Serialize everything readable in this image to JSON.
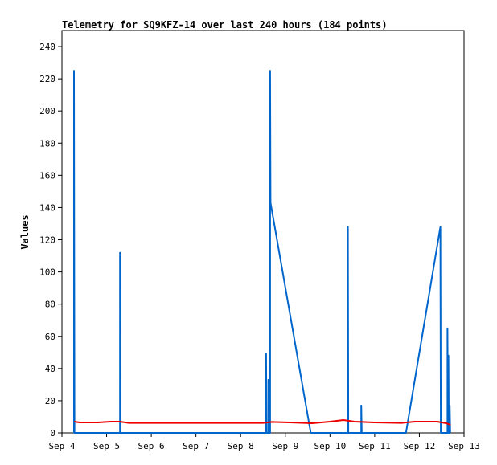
{
  "chart_data": {
    "type": "line",
    "title": "Telemetry for SQ9KFZ-14 over last 240 hours (184 points)",
    "ylabel": "Values",
    "xlabel": "",
    "ylim": [
      0,
      250
    ],
    "y_ticks": [
      0,
      20,
      40,
      60,
      80,
      100,
      120,
      140,
      160,
      180,
      200,
      220,
      240
    ],
    "xlim": [
      4.0,
      13.0
    ],
    "x_ticks": [
      {
        "label": "Sep 4",
        "x": 4
      },
      {
        "label": "Sep 5",
        "x": 5
      },
      {
        "label": "Sep 6",
        "x": 6
      },
      {
        "label": "Sep 7",
        "x": 7
      },
      {
        "label": "Sep 8",
        "x": 8
      },
      {
        "label": "Sep 9",
        "x": 9
      },
      {
        "label": "Sep 10",
        "x": 10
      },
      {
        "label": "Sep 11",
        "x": 11
      },
      {
        "label": "Sep 12",
        "x": 12
      },
      {
        "label": "Sep 13",
        "x": 13
      }
    ],
    "grid": false,
    "series": [
      {
        "color": "#0066cc",
        "points": [
          [
            4.27,
            0
          ],
          [
            4.27,
            225
          ],
          [
            4.28,
            0
          ],
          [
            5.3,
            0
          ],
          [
            5.3,
            112
          ],
          [
            5.31,
            0
          ],
          [
            8.57,
            0
          ],
          [
            8.57,
            49
          ],
          [
            8.58,
            0
          ],
          [
            8.62,
            0
          ],
          [
            8.62,
            33
          ],
          [
            8.63,
            0
          ],
          [
            8.66,
            0
          ],
          [
            8.66,
            225
          ],
          [
            8.67,
            143
          ],
          [
            9.57,
            0
          ],
          [
            10.4,
            0
          ],
          [
            10.4,
            128
          ],
          [
            10.41,
            0
          ],
          [
            10.7,
            0
          ],
          [
            10.7,
            17
          ],
          [
            10.71,
            0
          ],
          [
            11.7,
            0
          ],
          [
            12.47,
            128
          ],
          [
            12.48,
            0
          ],
          [
            12.63,
            0
          ],
          [
            12.63,
            65
          ],
          [
            12.64,
            0
          ],
          [
            12.65,
            0
          ],
          [
            12.65,
            48
          ],
          [
            12.66,
            0
          ],
          [
            12.68,
            0
          ],
          [
            12.68,
            17
          ],
          [
            12.69,
            0
          ]
        ]
      },
      {
        "color": "#ee0000",
        "points": [
          [
            4.27,
            7.0
          ],
          [
            4.4,
            6.5
          ],
          [
            4.8,
            6.5
          ],
          [
            5.1,
            7.0
          ],
          [
            5.3,
            7.0
          ],
          [
            5.5,
            6.2
          ],
          [
            6.5,
            6.2
          ],
          [
            7.5,
            6.2
          ],
          [
            8.5,
            6.2
          ],
          [
            8.7,
            6.8
          ],
          [
            9.1,
            6.5
          ],
          [
            9.6,
            6.0
          ],
          [
            10.0,
            7.0
          ],
          [
            10.3,
            8.0
          ],
          [
            10.55,
            7.0
          ],
          [
            11.0,
            6.5
          ],
          [
            11.6,
            6.2
          ],
          [
            11.9,
            7.0
          ],
          [
            12.4,
            7.0
          ],
          [
            12.6,
            6.0
          ],
          [
            12.7,
            5.0
          ]
        ]
      }
    ]
  }
}
